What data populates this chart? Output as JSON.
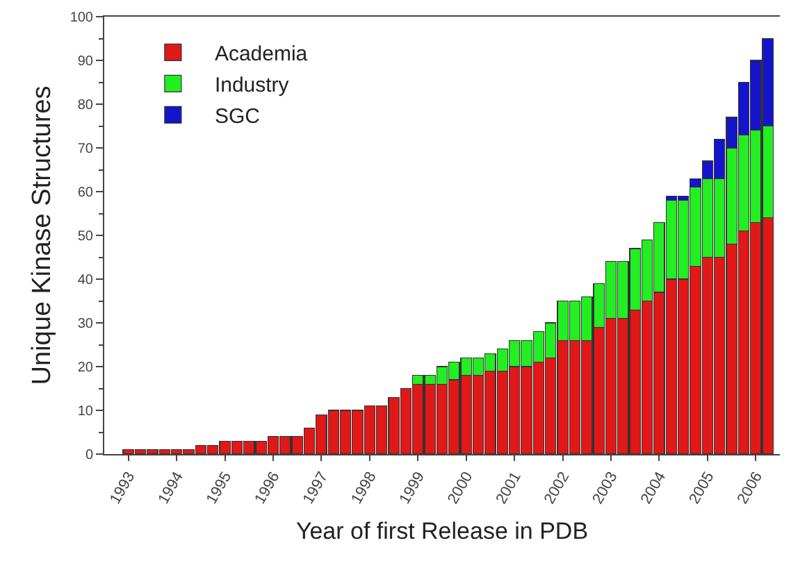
{
  "chart_data": {
    "type": "bar",
    "stacked": true,
    "xlabel": "Year of first Release in PDB",
    "ylabel": "Unique Kinase Structures",
    "x": [
      1993,
      1993.25,
      1993.5,
      1993.75,
      1994,
      1994.25,
      1994.5,
      1994.75,
      1995,
      1995.25,
      1995.5,
      1995.75,
      1996,
      1996.25,
      1996.5,
      1996.75,
      1997,
      1997.25,
      1997.5,
      1997.75,
      1998,
      1998.25,
      1998.5,
      1998.75,
      1999,
      1999.25,
      1999.5,
      1999.75,
      2000,
      2000.25,
      2000.5,
      2000.75,
      2001,
      2001.25,
      2001.5,
      2001.75,
      2002,
      2002.25,
      2002.5,
      2002.75,
      2003,
      2003.25,
      2003.5,
      2003.75,
      2004,
      2004.25,
      2004.5,
      2004.75,
      2005,
      2005.25,
      2005.5,
      2005.75,
      2006,
      2006.25
    ],
    "series": [
      {
        "name": "Academia",
        "color": "#e01818",
        "values": [
          1,
          1,
          1,
          1,
          1,
          1,
          2,
          2,
          3,
          3,
          3,
          3,
          4,
          4,
          4,
          6,
          9,
          10,
          10,
          10,
          11,
          11,
          13,
          15,
          16,
          16,
          16,
          17,
          18,
          18,
          19,
          19,
          20,
          20,
          21,
          22,
          26,
          26,
          26,
          29,
          31,
          31,
          33,
          35,
          37,
          40,
          40,
          43,
          45,
          45,
          48,
          51,
          53,
          54
        ]
      },
      {
        "name": "Industry",
        "color": "#22ee22",
        "values": [
          null,
          null,
          null,
          null,
          null,
          null,
          null,
          null,
          null,
          null,
          null,
          null,
          null,
          null,
          null,
          null,
          null,
          null,
          null,
          null,
          null,
          null,
          null,
          null,
          2,
          2,
          4,
          4,
          4,
          4,
          4,
          5,
          6,
          6,
          7,
          8,
          9,
          9,
          10,
          10,
          13,
          13,
          14,
          14,
          16,
          18,
          18,
          18,
          18,
          18,
          22,
          22,
          21,
          21
        ]
      },
      {
        "name": "SGC",
        "color": "#1414cc",
        "values": [
          null,
          null,
          null,
          null,
          null,
          null,
          null,
          null,
          null,
          null,
          null,
          null,
          null,
          null,
          null,
          null,
          null,
          null,
          null,
          null,
          null,
          null,
          null,
          null,
          null,
          null,
          null,
          null,
          null,
          null,
          null,
          null,
          null,
          null,
          null,
          null,
          null,
          null,
          null,
          null,
          null,
          null,
          null,
          null,
          null,
          1,
          1,
          2,
          4,
          9,
          7,
          12,
          16,
          20
        ]
      }
    ],
    "xlim": [
      1992.5,
      2006.5
    ],
    "xticks": [
      1993,
      1994,
      1995,
      1996,
      1997,
      1998,
      1999,
      2000,
      2001,
      2002,
      2003,
      2004,
      2005,
      2006
    ],
    "ylim": [
      0,
      100
    ],
    "yticks": [
      0,
      10,
      20,
      30,
      40,
      50,
      60,
      70,
      80,
      90,
      100
    ],
    "grid": false,
    "legend": "top left"
  }
}
